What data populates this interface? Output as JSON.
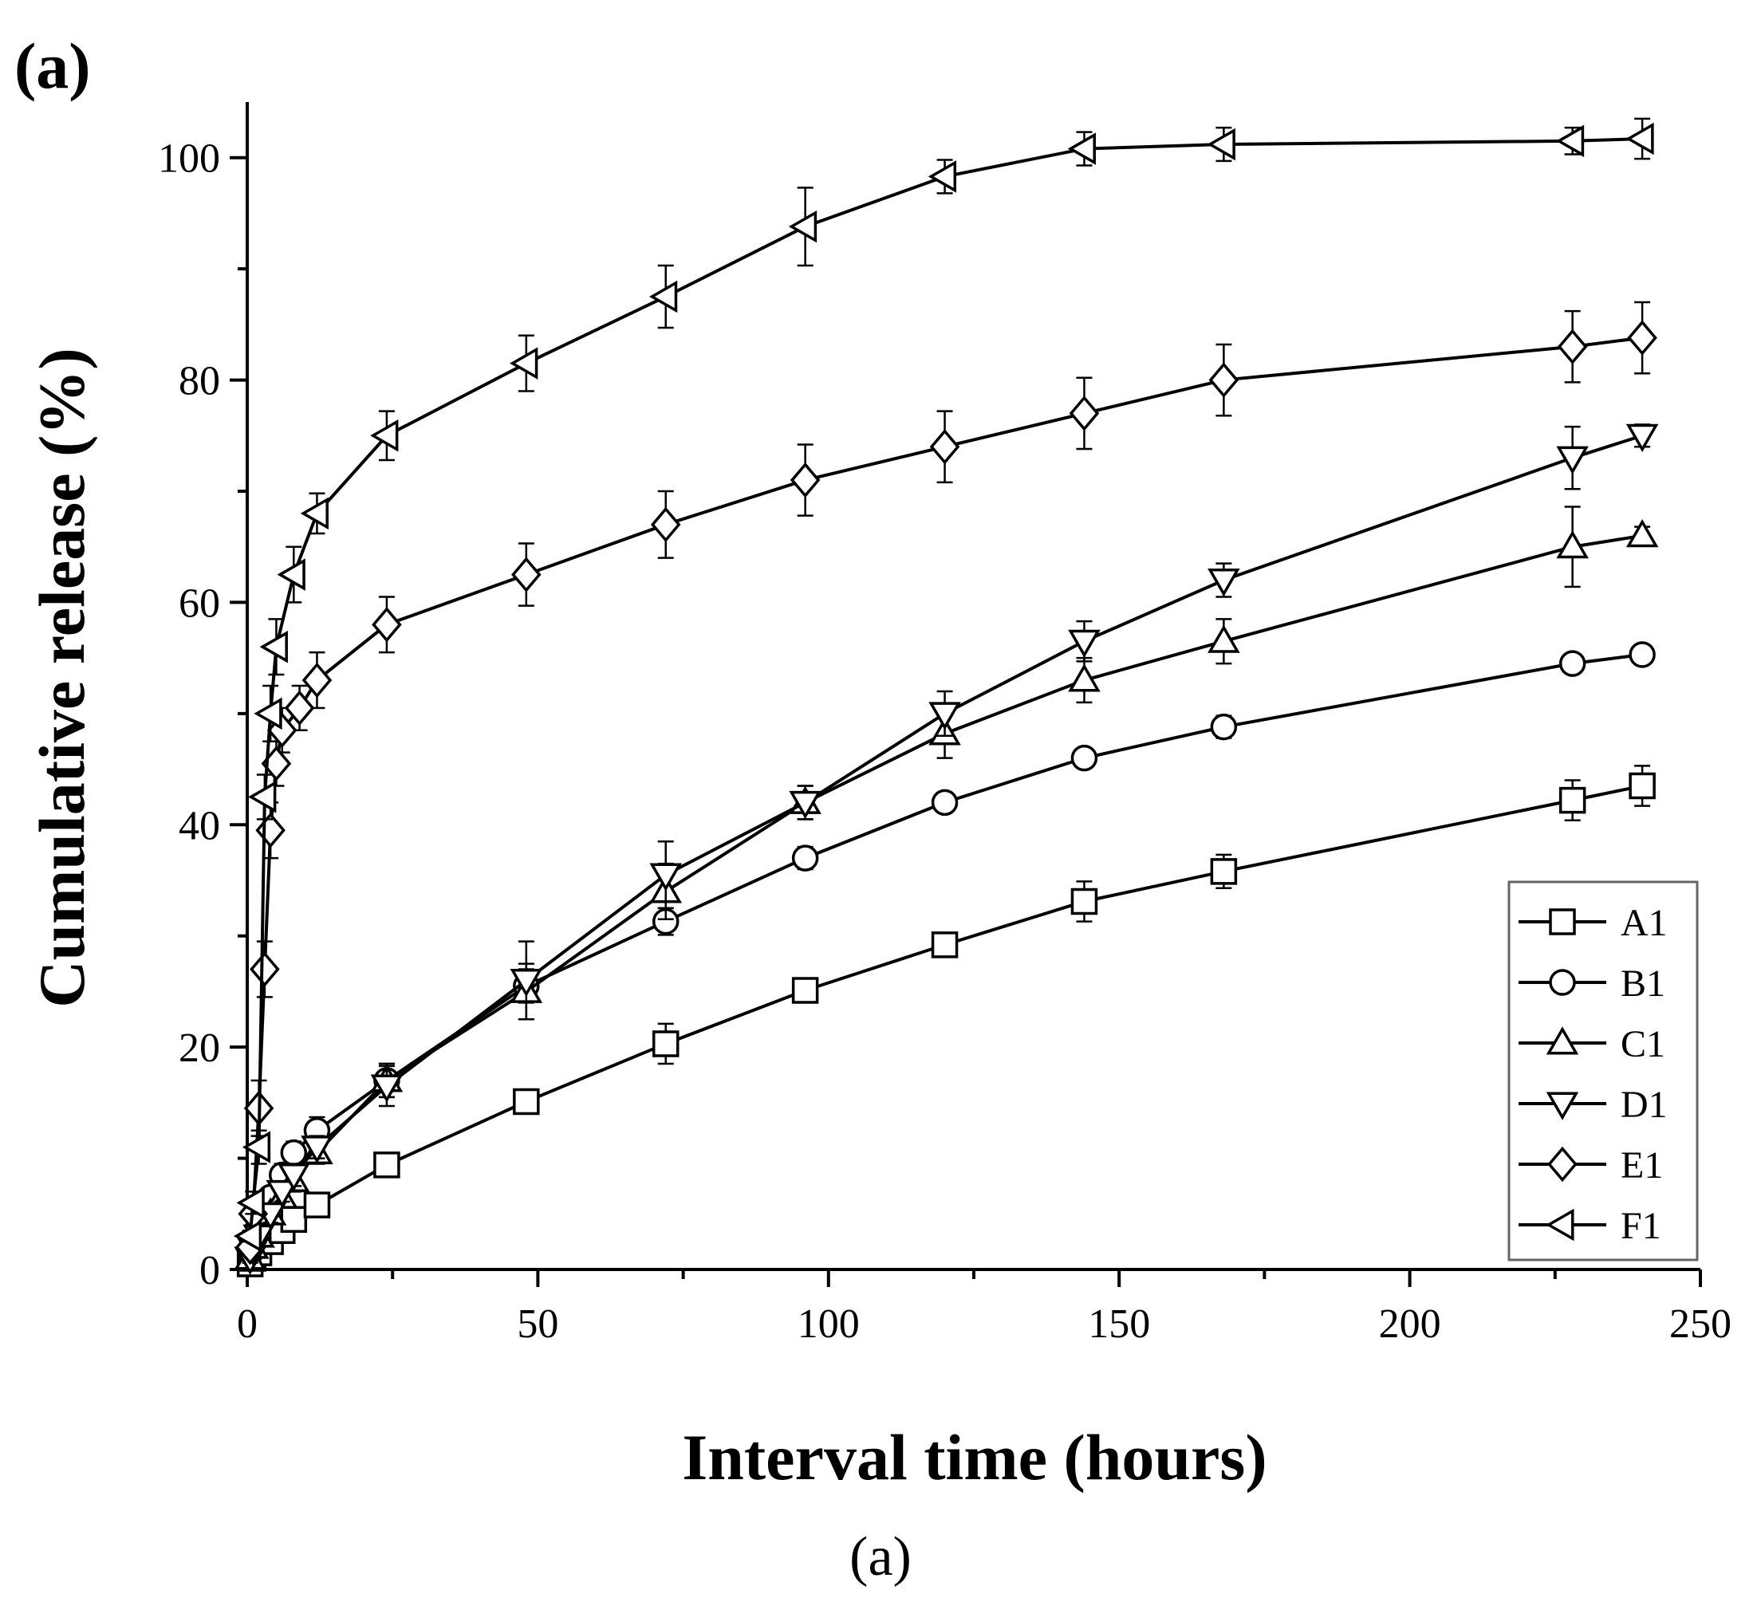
{
  "panel_label": "(a)",
  "caption": "(a)",
  "chart_data": {
    "type": "line",
    "title": "",
    "xlabel": "Interval time (hours)",
    "ylabel": "Cumulative release (%)",
    "xlim": [
      0,
      250
    ],
    "ylim": [
      0,
      105
    ],
    "xticks": [
      0,
      50,
      100,
      150,
      200,
      250
    ],
    "yticks": [
      0,
      20,
      40,
      60,
      80,
      100
    ],
    "grid": false,
    "legend_position": "bottom-right",
    "series": [
      {
        "name": "A1",
        "marker": "square",
        "x": [
          0.5,
          1,
          2,
          4,
          6,
          8,
          12,
          24,
          48,
          72,
          96,
          120,
          144,
          168,
          228,
          240
        ],
        "y": [
          0.5,
          1,
          1.5,
          2.5,
          3.5,
          4.5,
          5.8,
          9.4,
          15.1,
          20.3,
          25.1,
          29.2,
          33.1,
          35.8,
          42.2,
          43.5
        ],
        "err": [
          0.3,
          0.3,
          0.4,
          0.5,
          0.5,
          0.6,
          0.8,
          0.7,
          1.0,
          1.8,
          1.0,
          0.8,
          1.8,
          1.5,
          1.8,
          1.8
        ]
      },
      {
        "name": "B1",
        "marker": "circle",
        "x": [
          0.5,
          1,
          2,
          4,
          6,
          8,
          12,
          24,
          48,
          72,
          96,
          120,
          144,
          168,
          228,
          240
        ],
        "y": [
          1.5,
          2.5,
          4,
          6.5,
          8.5,
          10.5,
          12.5,
          17,
          25.5,
          31.3,
          37,
          42,
          46,
          48.8,
          54.5,
          55.3
        ],
        "err": [
          0.5,
          0.5,
          0.6,
          0.8,
          1.0,
          1.0,
          1.2,
          1.5,
          1.5,
          1.2,
          1.0,
          0.8,
          0.8,
          1.0,
          0.8,
          0.8
        ]
      },
      {
        "name": "C1",
        "marker": "triangle-up",
        "x": [
          0.5,
          1,
          2,
          4,
          6,
          8,
          12,
          24,
          48,
          72,
          96,
          120,
          144,
          168,
          228,
          240
        ],
        "y": [
          1,
          2,
          3,
          5,
          6.5,
          8,
          10.5,
          17,
          25,
          34,
          42,
          48.2,
          53,
          56.5,
          65,
          66
        ],
        "err": [
          0.4,
          0.5,
          0.6,
          0.8,
          0.9,
          1.0,
          1.0,
          1.5,
          2.5,
          2.5,
          1.5,
          2.2,
          2.0,
          2.0,
          3.6,
          0.8
        ]
      },
      {
        "name": "D1",
        "marker": "triangle-down",
        "x": [
          0.5,
          1,
          2,
          4,
          6,
          8,
          12,
          24,
          48,
          72,
          96,
          120,
          144,
          168,
          228,
          240
        ],
        "y": [
          1,
          1.8,
          3,
          5,
          7,
          8.5,
          11,
          16.5,
          26,
          35.5,
          42,
          50,
          56.5,
          62,
          73,
          75
        ],
        "err": [
          0.4,
          0.5,
          0.6,
          0.8,
          0.9,
          1.0,
          1.0,
          1.8,
          3.5,
          3.0,
          1.5,
          2.0,
          1.8,
          1.5,
          2.8,
          1.0
        ]
      },
      {
        "name": "E1",
        "marker": "diamond",
        "x": [
          0.5,
          1,
          2,
          3,
          4,
          5,
          6,
          9,
          12,
          24,
          48,
          72,
          96,
          120,
          144,
          168,
          228,
          240
        ],
        "y": [
          2,
          5,
          14.5,
          27,
          39.5,
          45.5,
          48.5,
          50.5,
          53,
          58,
          62.5,
          67,
          71,
          74,
          77,
          80,
          83,
          83.8
        ],
        "err": [
          0.5,
          1.0,
          2.5,
          2.5,
          2.5,
          2.0,
          2.0,
          2.0,
          2.5,
          2.5,
          2.8,
          3.0,
          3.2,
          3.2,
          3.2,
          3.2,
          3.2,
          3.2
        ]
      },
      {
        "name": "F1",
        "marker": "triangle-left",
        "x": [
          0.5,
          1,
          2,
          3,
          4,
          5,
          8,
          12,
          24,
          48,
          72,
          96,
          120,
          144,
          168,
          228,
          240
        ],
        "y": [
          3,
          6,
          11,
          42.5,
          50,
          56,
          62.5,
          68,
          75,
          81.5,
          87.5,
          93.8,
          98.3,
          100.8,
          101.2,
          101.5,
          101.7
        ],
        "err": [
          0.5,
          1.0,
          1.5,
          2.0,
          2.5,
          2.5,
          2.5,
          1.8,
          2.2,
          2.5,
          2.8,
          3.5,
          1.5,
          1.5,
          1.5,
          1.2,
          1.8
        ]
      }
    ]
  }
}
